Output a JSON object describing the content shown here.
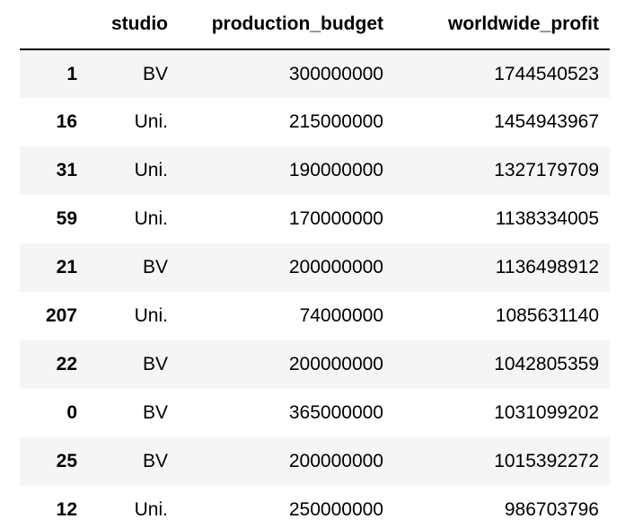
{
  "table": {
    "columns": [
      "",
      "studio",
      "production_budget",
      "worldwide_profit"
    ],
    "rows": [
      {
        "index": "1",
        "studio": "BV",
        "production_budget": "300000000",
        "worldwide_profit": "1744540523"
      },
      {
        "index": "16",
        "studio": "Uni.",
        "production_budget": "215000000",
        "worldwide_profit": "1454943967"
      },
      {
        "index": "31",
        "studio": "Uni.",
        "production_budget": "190000000",
        "worldwide_profit": "1327179709"
      },
      {
        "index": "59",
        "studio": "Uni.",
        "production_budget": "170000000",
        "worldwide_profit": "1138334005"
      },
      {
        "index": "21",
        "studio": "BV",
        "production_budget": "200000000",
        "worldwide_profit": "1136498912"
      },
      {
        "index": "207",
        "studio": "Uni.",
        "production_budget": "74000000",
        "worldwide_profit": "1085631140"
      },
      {
        "index": "22",
        "studio": "BV",
        "production_budget": "200000000",
        "worldwide_profit": "1042805359"
      },
      {
        "index": "0",
        "studio": "BV",
        "production_budget": "365000000",
        "worldwide_profit": "1031099202"
      },
      {
        "index": "25",
        "studio": "BV",
        "production_budget": "200000000",
        "worldwide_profit": "1015392272"
      },
      {
        "index": "12",
        "studio": "Uni.",
        "production_budget": "250000000",
        "worldwide_profit": "986703796"
      }
    ]
  }
}
